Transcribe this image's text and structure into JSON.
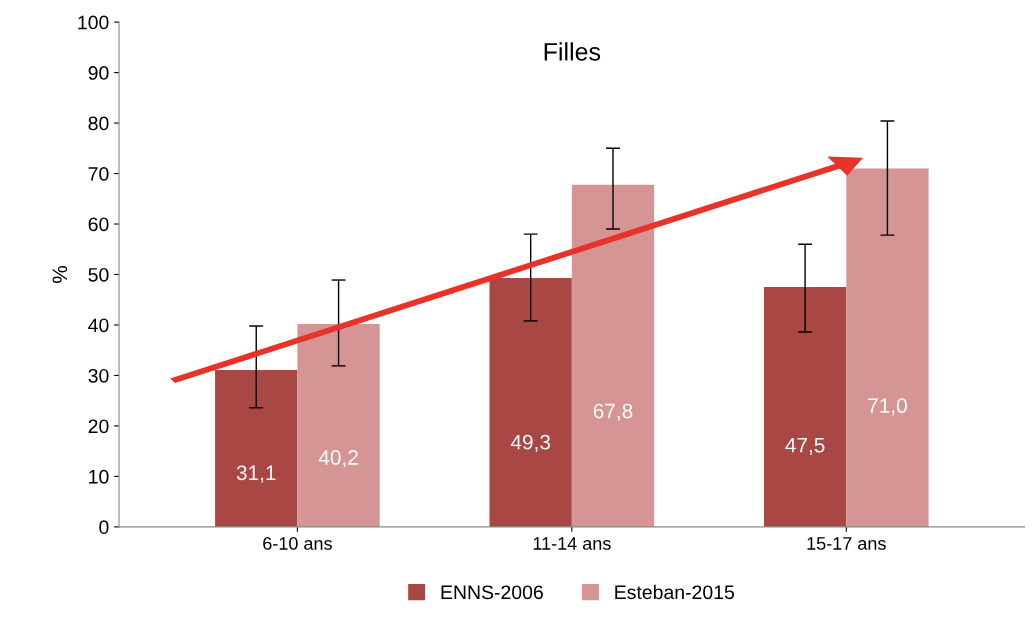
{
  "chart_data": {
    "type": "bar",
    "title": "Filles",
    "ylabel": "%",
    "categories": [
      "6-10 ans",
      "11-14 ans",
      "15-17 ans"
    ],
    "series": [
      {
        "name": "ENNS-2006",
        "color": "#a84744",
        "values": [
          31.1,
          49.3,
          47.5
        ],
        "value_labels": [
          "31,1",
          "49,3",
          "47,5"
        ],
        "errors": [
          [
            23.6,
            39.8
          ],
          [
            40.8,
            58.0
          ],
          [
            38.6,
            56.0
          ]
        ]
      },
      {
        "name": "Esteban-2015",
        "color": "#d59594",
        "values": [
          40.2,
          67.8,
          71.0
        ],
        "value_labels": [
          "40,2",
          "67,8",
          "71,0"
        ],
        "errors": [
          [
            31.9,
            48.9
          ],
          [
            59.0,
            75.0
          ],
          [
            57.8,
            80.4
          ]
        ]
      }
    ],
    "ylim": [
      0,
      100
    ],
    "yticks": [
      0,
      10,
      20,
      30,
      40,
      50,
      60,
      70,
      80,
      90,
      100
    ],
    "grid": false,
    "legend": "bottom"
  }
}
